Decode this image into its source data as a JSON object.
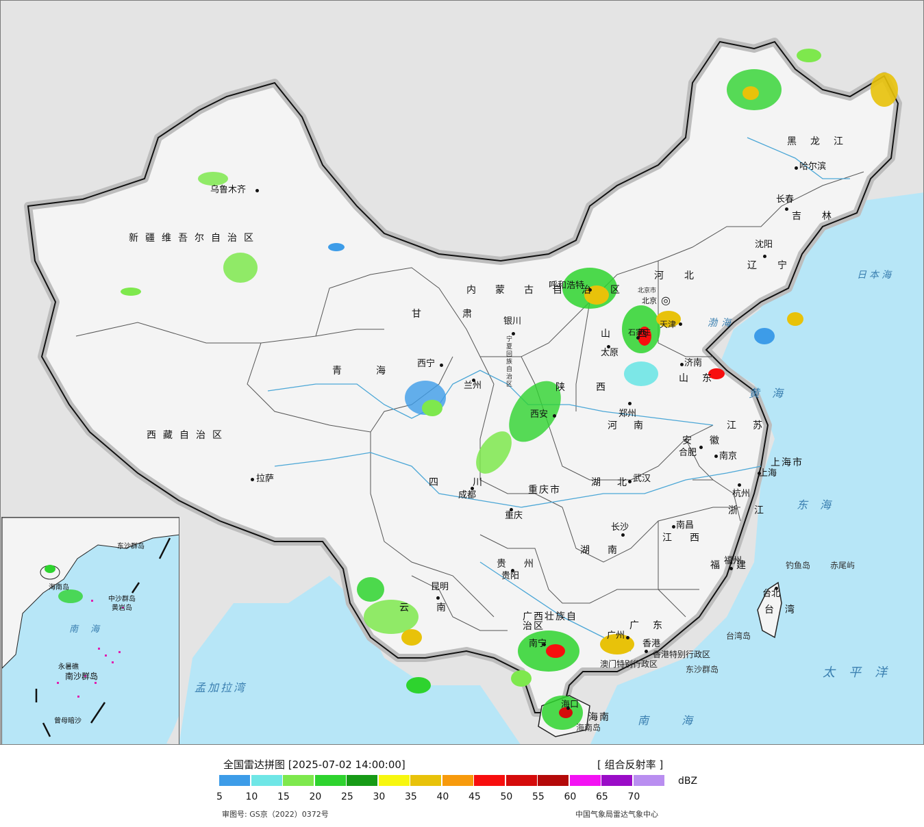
{
  "map": {
    "provinces": [
      {
        "name": "新疆维吾尔自治区"
      },
      {
        "name": "西藏自治区"
      },
      {
        "name": "青海"
      },
      {
        "name": "甘肃"
      },
      {
        "name": "内蒙古自治区"
      },
      {
        "name": "黑龙江"
      },
      {
        "name": "吉林"
      },
      {
        "name": "辽宁"
      },
      {
        "name": "河北"
      },
      {
        "name": "山西"
      },
      {
        "name": "山东"
      },
      {
        "name": "陕西"
      },
      {
        "name": "河南"
      },
      {
        "name": "四川"
      },
      {
        "name": "重庆市"
      },
      {
        "name": "湖北"
      },
      {
        "name": "安徽"
      },
      {
        "name": "江苏"
      },
      {
        "name": "上海市"
      },
      {
        "name": "浙江"
      },
      {
        "name": "湖南"
      },
      {
        "name": "江西"
      },
      {
        "name": "贵州"
      },
      {
        "name": "云南"
      },
      {
        "name": "福建"
      },
      {
        "name": "台湾"
      },
      {
        "name": "广西壮族自治区"
      },
      {
        "name": "广东"
      },
      {
        "name": "海南"
      },
      {
        "name": "宁夏回族自治区"
      },
      {
        "name": "北京市"
      },
      {
        "name": "天津"
      },
      {
        "name": "香港特别行政区"
      },
      {
        "name": "澳门特别行政区"
      }
    ],
    "cities": [
      "乌鲁木齐",
      "拉萨",
      "西宁",
      "兰州",
      "银川",
      "呼和浩特",
      "北京",
      "石家庄",
      "太原",
      "济南",
      "郑州",
      "西安",
      "成都",
      "重庆",
      "武汉",
      "合肥",
      "南京",
      "上海",
      "杭州",
      "长沙",
      "南昌",
      "福州",
      "贵阳",
      "昆明",
      "南宁",
      "广州",
      "香港",
      "海口",
      "台北",
      "哈尔滨",
      "长春",
      "沈阳",
      "天津"
    ],
    "seas": [
      "日本海",
      "渤海",
      "黄海",
      "东海",
      "南海",
      "太平洋",
      "孟加拉湾"
    ],
    "islands": [
      "钓鱼岛",
      "赤尾屿",
      "台湾岛",
      "东沙群岛",
      "海南岛"
    ],
    "inset_labels": [
      "南海",
      "中沙群岛",
      "黄岩岛",
      "永暑礁",
      "南沙群岛",
      "曾母暗沙",
      "东沙群岛",
      "海南岛"
    ]
  },
  "legend": {
    "title": "全国雷达拼图 [2025-07-02 14:00:00]",
    "product": "[ 组合反射率 ]",
    "unit": "dBZ",
    "ticks": [
      "5",
      "10",
      "15",
      "20",
      "25",
      "30",
      "35",
      "40",
      "45",
      "50",
      "55",
      "60",
      "65",
      "70"
    ],
    "colors": [
      "#3d9ce8",
      "#6fe6e6",
      "#7ee84d",
      "#2ed32e",
      "#169a16",
      "#f7f70f",
      "#e8c20a",
      "#f79a0c",
      "#f70e0e",
      "#d50b0b",
      "#b40909",
      "#f312f3",
      "#9a0cc7",
      "#b98ef0"
    ]
  },
  "footer": {
    "approval": "审图号: GS京（2022）0372号",
    "agency": "中国气象局雷达气象中心"
  }
}
